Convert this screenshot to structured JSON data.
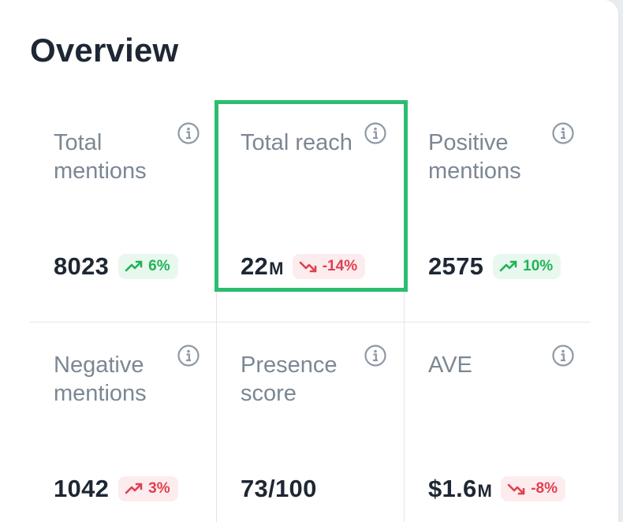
{
  "title": "Overview",
  "metrics": [
    {
      "label": "Total mentions",
      "value": "8023",
      "unit": "",
      "change": "6%",
      "trend": "up"
    },
    {
      "label": "Total reach",
      "value": "22",
      "unit": "M",
      "change": "-14%",
      "trend": "down"
    },
    {
      "label": "Positive mentions",
      "value": "2575",
      "unit": "",
      "change": "10%",
      "trend": "up"
    },
    {
      "label": "Negative mentions",
      "value": "1042",
      "unit": "",
      "change": "3%",
      "trend": "up-negative"
    },
    {
      "label": "Presence score",
      "value": "73/100",
      "unit": "",
      "change": "",
      "trend": "none"
    },
    {
      "label": "AVE",
      "value": "$1.6",
      "unit": "M",
      "change": "-8%",
      "trend": "down"
    }
  ],
  "colors": {
    "highlight": "#2dbd6e",
    "positive": "#20b356",
    "negative": "#e0404f",
    "label": "#7c8794",
    "value": "#1e2733"
  },
  "icons": {
    "info": "info-circle-icon",
    "up": "trend-up-icon",
    "down": "trend-down-icon"
  }
}
